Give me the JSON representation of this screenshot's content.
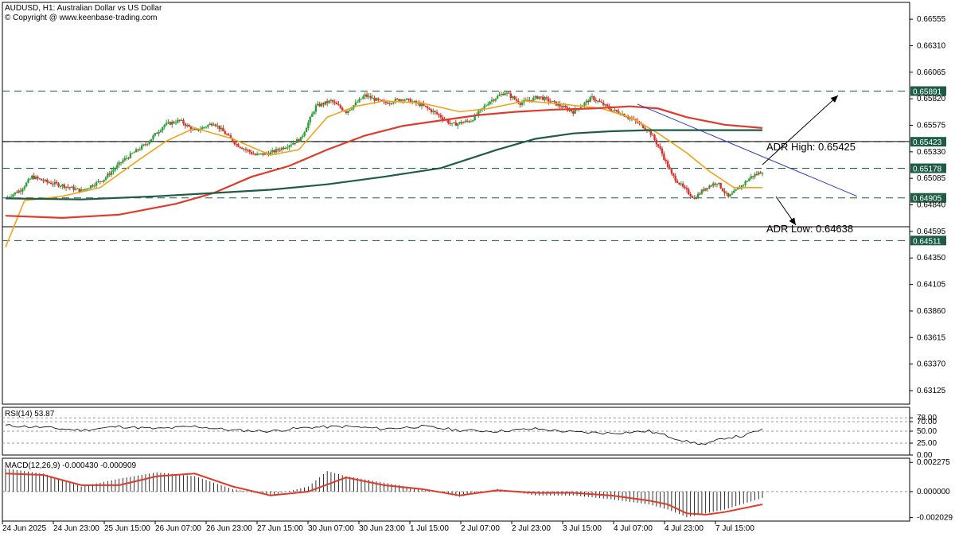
{
  "header": {
    "line1": "AUDUSD, H1:  Australian Dollar vs US Dollar",
    "line2": "© Copyright @ www.keenbase-trading.com"
  },
  "colors": {
    "bull": "#2e9e3a",
    "bear": "#d8302a",
    "ma_fast": "#f0a31c",
    "ma_mid": "#e03a2a",
    "ma_slow": "#1f5c46",
    "trend": "#2b3ab8",
    "level_box": "#1f5c46"
  },
  "chart_data": [
    {
      "type": "candlestick",
      "symbol": "AUDUSD",
      "timeframe": "H1",
      "ylim": [
        0.63,
        0.6671
      ],
      "y_ticks": [
        "0.66555",
        "0.66310",
        "0.66065",
        "0.65820",
        "0.65575",
        "0.65330",
        "0.65085",
        "0.64840",
        "0.64595",
        "0.64350",
        "0.64105",
        "0.63860",
        "0.63615",
        "0.63370",
        "0.63125"
      ],
      "x_ticks": [
        "24 Jun 2025",
        "24 Jun 23:00",
        "25 Jun 15:00",
        "26 Jun 07:00",
        "26 Jun 23:00",
        "27 Jun 15:00",
        "30 Jun 07:00",
        "30 Jun 23:00",
        "1 Jul 15:00",
        "2 Jul 07:00",
        "2 Jul 23:00",
        "3 Jul 15:00",
        "4 Jul 07:00",
        "4 Jul 23:00",
        "7 Jul 15:00"
      ],
      "close_path": [
        [
          0,
          0.649
        ],
        [
          8,
          0.6498
        ],
        [
          14,
          0.651
        ],
        [
          22,
          0.6505
        ],
        [
          30,
          0.6502
        ],
        [
          40,
          0.6497
        ],
        [
          52,
          0.6508
        ],
        [
          62,
          0.6525
        ],
        [
          74,
          0.654
        ],
        [
          84,
          0.6558
        ],
        [
          92,
          0.6562
        ],
        [
          100,
          0.6552
        ],
        [
          110,
          0.656
        ],
        [
          122,
          0.654
        ],
        [
          132,
          0.653
        ],
        [
          140,
          0.6532
        ],
        [
          148,
          0.6538
        ],
        [
          156,
          0.6545
        ],
        [
          164,
          0.6575
        ],
        [
          172,
          0.658
        ],
        [
          180,
          0.657
        ],
        [
          190,
          0.6585
        ],
        [
          200,
          0.6578
        ],
        [
          210,
          0.6582
        ],
        [
          220,
          0.6576
        ],
        [
          228,
          0.6568
        ],
        [
          236,
          0.6558
        ],
        [
          246,
          0.6562
        ],
        [
          256,
          0.658
        ],
        [
          264,
          0.6588
        ],
        [
          272,
          0.6578
        ],
        [
          282,
          0.6584
        ],
        [
          290,
          0.6578
        ],
        [
          300,
          0.657
        ],
        [
          310,
          0.6583
        ],
        [
          320,
          0.6572
        ],
        [
          326,
          0.6568
        ],
        [
          334,
          0.656
        ],
        [
          340,
          0.6553
        ],
        [
          346,
          0.6535
        ],
        [
          352,
          0.6512
        ],
        [
          358,
          0.65
        ],
        [
          364,
          0.649
        ],
        [
          370,
          0.65
        ],
        [
          376,
          0.6505
        ],
        [
          382,
          0.6491
        ],
        [
          388,
          0.65
        ],
        [
          394,
          0.651
        ],
        [
          400,
          0.6515
        ]
      ],
      "overlays": [
        {
          "kind": "ma",
          "color_key": "ma_fast",
          "points": [
            [
              0,
              0.6445
            ],
            [
              10,
              0.6488
            ],
            [
              30,
              0.6492
            ],
            [
              50,
              0.65
            ],
            [
              70,
              0.6525
            ],
            [
              85,
              0.6543
            ],
            [
              100,
              0.6555
            ],
            [
              120,
              0.6545
            ],
            [
              140,
              0.653
            ],
            [
              155,
              0.6535
            ],
            [
              170,
              0.6565
            ],
            [
              185,
              0.6575
            ],
            [
              200,
              0.658
            ],
            [
              220,
              0.6578
            ],
            [
              240,
              0.657
            ],
            [
              255,
              0.6573
            ],
            [
              275,
              0.658
            ],
            [
              295,
              0.6577
            ],
            [
              315,
              0.6573
            ],
            [
              330,
              0.6565
            ],
            [
              345,
              0.655
            ],
            [
              360,
              0.6532
            ],
            [
              372,
              0.6515
            ],
            [
              385,
              0.65
            ],
            [
              400,
              0.65
            ]
          ]
        },
        {
          "kind": "ma",
          "color_key": "ma_mid",
          "points": [
            [
              0,
              0.6474
            ],
            [
              30,
              0.6472
            ],
            [
              60,
              0.6475
            ],
            [
              90,
              0.6485
            ],
            [
              110,
              0.6495
            ],
            [
              130,
              0.651
            ],
            [
              150,
              0.652
            ],
            [
              170,
              0.6535
            ],
            [
              190,
              0.6548
            ],
            [
              210,
              0.6557
            ],
            [
              230,
              0.6562
            ],
            [
              250,
              0.6567
            ],
            [
              270,
              0.657
            ],
            [
              290,
              0.6572
            ],
            [
              310,
              0.6573
            ],
            [
              330,
              0.6575
            ],
            [
              345,
              0.6573
            ],
            [
              360,
              0.6565
            ],
            [
              380,
              0.6558
            ],
            [
              400,
              0.6555
            ]
          ]
        },
        {
          "kind": "ma",
          "color_key": "ma_slow",
          "points": [
            [
              0,
              0.649
            ],
            [
              40,
              0.6489
            ],
            [
              80,
              0.6492
            ],
            [
              110,
              0.6495
            ],
            [
              140,
              0.6498
            ],
            [
              170,
              0.6503
            ],
            [
              200,
              0.651
            ],
            [
              230,
              0.6518
            ],
            [
              260,
              0.6535
            ],
            [
              280,
              0.6545
            ],
            [
              300,
              0.655
            ],
            [
              320,
              0.6552
            ],
            [
              340,
              0.6553
            ],
            [
              360,
              0.6553
            ],
            [
              380,
              0.6553
            ],
            [
              400,
              0.6553
            ]
          ]
        }
      ],
      "trend_line": {
        "from": [
          334,
          0.6577
        ],
        "to": [
          450,
          0.6492
        ]
      },
      "horizontal_levels": [
        {
          "value": 0.65891,
          "style": "dashed",
          "label": "0.65891"
        },
        {
          "value": 0.65423,
          "style": "dashed",
          "label": "0.65423"
        },
        {
          "value": 0.65178,
          "style": "dashed",
          "label": "0.65178"
        },
        {
          "value": 0.64905,
          "style": "dashed",
          "label": "0.64905"
        },
        {
          "value": 0.64511,
          "style": "dashed",
          "label": "0.64511"
        },
        {
          "value": 0.65425,
          "style": "solid",
          "label": ""
        },
        {
          "value": 0.64638,
          "style": "solid",
          "label": ""
        }
      ],
      "annotations": [
        {
          "text": "ADR High: 0.65425",
          "value": 0.65425
        },
        {
          "text": "ADR Low: 0.64638",
          "value": 0.64638
        }
      ]
    },
    {
      "type": "line",
      "name": "RSI(14) 53.87",
      "ylim": [
        0,
        100
      ],
      "y_ticks": [
        "78.00",
        "70.00",
        "50.00",
        "25.00",
        "0.00"
      ],
      "levels": [
        78,
        70,
        50,
        25,
        0
      ],
      "points": [
        [
          0,
          62
        ],
        [
          20,
          58
        ],
        [
          40,
          52
        ],
        [
          60,
          60
        ],
        [
          80,
          55
        ],
        [
          100,
          60
        ],
        [
          120,
          52
        ],
        [
          140,
          50
        ],
        [
          160,
          58
        ],
        [
          180,
          60
        ],
        [
          200,
          55
        ],
        [
          220,
          60
        ],
        [
          240,
          52
        ],
        [
          260,
          50
        ],
        [
          280,
          55
        ],
        [
          300,
          48
        ],
        [
          320,
          46
        ],
        [
          340,
          50
        ],
        [
          350,
          40
        ],
        [
          360,
          28
        ],
        [
          370,
          22
        ],
        [
          380,
          36
        ],
        [
          390,
          40
        ],
        [
          400,
          54
        ]
      ]
    },
    {
      "type": "bar+line",
      "name": "MACD(12,26,9) -0.000430 -0.000909",
      "ylim": [
        -0.0023,
        0.0026
      ],
      "y_ticks": [
        "0.002275",
        "0.000000",
        "-0.002029"
      ],
      "histogram": [
        [
          0,
          0.0018
        ],
        [
          20,
          0.0014
        ],
        [
          40,
          0.0004
        ],
        [
          60,
          0.001
        ],
        [
          80,
          0.0015
        ],
        [
          100,
          0.0012
        ],
        [
          120,
          0.0002
        ],
        [
          140,
          -0.0003
        ],
        [
          160,
          0.0004
        ],
        [
          170,
          0.0016
        ],
        [
          180,
          0.0012
        ],
        [
          200,
          0.0007
        ],
        [
          220,
          0.0002
        ],
        [
          240,
          -0.0004
        ],
        [
          260,
          0.0002
        ],
        [
          280,
          -0.0003
        ],
        [
          300,
          -0.0003
        ],
        [
          320,
          -0.0006
        ],
        [
          340,
          -0.001
        ],
        [
          350,
          -0.0014
        ],
        [
          360,
          -0.002
        ],
        [
          370,
          -0.0017
        ],
        [
          380,
          -0.0014
        ],
        [
          400,
          -0.0005
        ]
      ],
      "signal": [
        [
          0,
          0.0014
        ],
        [
          20,
          0.0013
        ],
        [
          40,
          0.0005
        ],
        [
          60,
          0.0005
        ],
        [
          80,
          0.0012
        ],
        [
          100,
          0.0014
        ],
        [
          120,
          0.0004
        ],
        [
          140,
          -0.0003
        ],
        [
          160,
          0.0
        ],
        [
          180,
          0.0011
        ],
        [
          200,
          0.0005
        ],
        [
          220,
          0.0002
        ],
        [
          240,
          -0.0003
        ],
        [
          260,
          0.0001
        ],
        [
          280,
          -0.0001
        ],
        [
          300,
          -0.0001
        ],
        [
          320,
          -0.0003
        ],
        [
          340,
          -0.0007
        ],
        [
          350,
          -0.001
        ],
        [
          360,
          -0.0017
        ],
        [
          370,
          -0.0018
        ],
        [
          380,
          -0.0016
        ],
        [
          400,
          -0.001
        ]
      ]
    }
  ]
}
